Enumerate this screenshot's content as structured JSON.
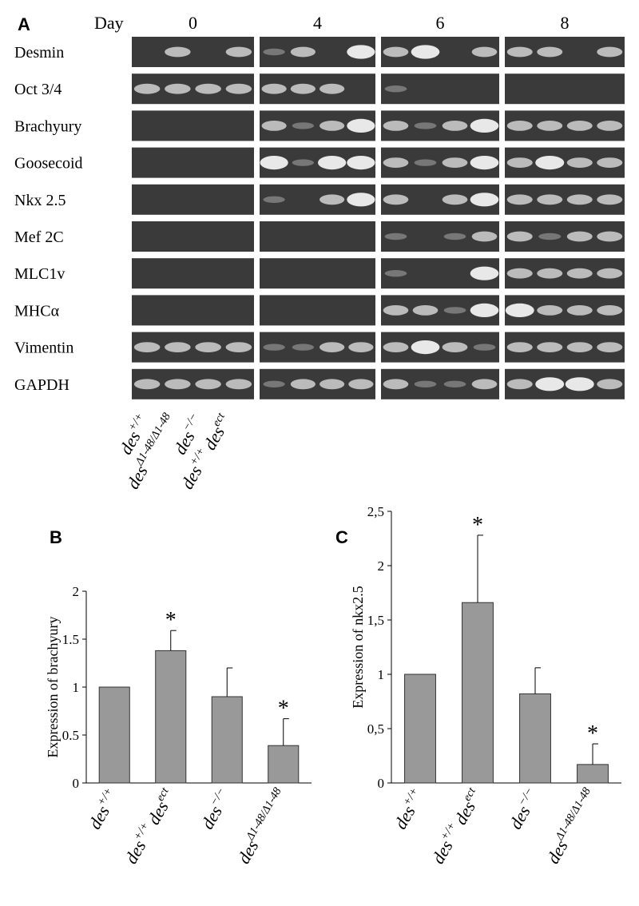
{
  "panel_a": {
    "label": "A",
    "day_label": "Day",
    "days": [
      "0",
      "4",
      "6",
      "8"
    ],
    "rows": [
      "Desmin",
      "Oct 3/4",
      "Brachyury",
      "Goosecoid",
      "Nkx 2.5",
      "Mef 2C",
      "MLC1v",
      "MHCα",
      "Vimentin",
      "GAPDH"
    ],
    "lanes": [
      [
        [
          "des",
          "+/+"
        ]
      ],
      [
        [
          "des",
          "Δ1-48/Δ1-48"
        ]
      ],
      [
        [
          "des",
          "−/−"
        ]
      ],
      [
        [
          "des",
          "+/+"
        ],
        [
          "des",
          "ect"
        ]
      ]
    ]
  },
  "chart_data": [
    {
      "type": "bar",
      "label": "B",
      "y_label": "Expression of brachyury",
      "categories": [
        [
          [
            "des",
            "+/+"
          ]
        ],
        [
          [
            "des",
            "+/+"
          ],
          [
            "des",
            "ect"
          ]
        ],
        [
          [
            "des",
            "−/−"
          ]
        ],
        [
          [
            "des",
            "Δ1-48/Δ1-48"
          ]
        ]
      ],
      "values": [
        1,
        1.38,
        0.9,
        0.39
      ],
      "errors": [
        0,
        0.21,
        0.3,
        0.28
      ],
      "markers": [
        null,
        "*",
        null,
        "*"
      ],
      "color": "#999999",
      "ylim": [
        0,
        2
      ],
      "yticks": [
        0,
        0.5,
        1,
        1.5,
        2
      ]
    },
    {
      "type": "bar",
      "label": "C",
      "y_label": "Expression of nkx2.5",
      "categories": [
        [
          [
            "des",
            "+/+"
          ]
        ],
        [
          [
            "des",
            "+/+"
          ],
          [
            "des",
            "ect"
          ]
        ],
        [
          [
            "des",
            "−/−"
          ]
        ],
        [
          [
            "des",
            "Δ1-48/Δ1-48"
          ]
        ]
      ],
      "values": [
        1,
        1.66,
        0.82,
        0.17
      ],
      "errors": [
        0,
        0.62,
        0.24,
        0.19
      ],
      "markers": [
        null,
        "*",
        null,
        "*"
      ],
      "color": "#999999",
      "ylim": [
        0,
        2.5
      ],
      "yticks": [
        0,
        {
          "value": 0.5,
          "label": "0,5"
        },
        1,
        {
          "value": 1.5,
          "label": "1,5"
        },
        2,
        {
          "value": 2.5,
          "label": "2,5"
        }
      ]
    }
  ]
}
